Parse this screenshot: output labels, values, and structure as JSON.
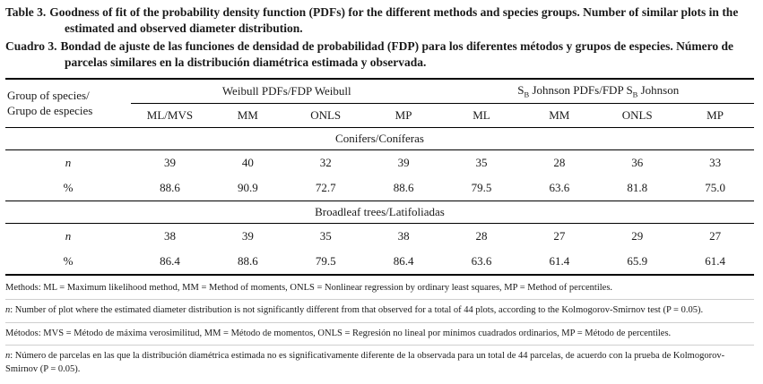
{
  "doc": {
    "title_en": {
      "label": "Table 3.",
      "text": "Goodness of fit of the probability density function (PDFs) for the different methods and species groups. Number of similar plots in the estimated and observed diameter distribution."
    },
    "title_es": {
      "label": "Cuadro 3.",
      "text": "Bondad de ajuste de las funciones de densidad de probabilidad (FDP) para los diferentes métodos y grupos de especies. Número de parcelas similares en la distribución diamétrica estimada y observada."
    }
  },
  "table": {
    "row_header": {
      "line1": "Group of species/",
      "line2": "Grupo de especies"
    },
    "group_weibull": "Weibull PDFs/FDP Weibull",
    "group_johnson": {
      "p0": "S",
      "s0": "B",
      "p1": " Johnson PDFs/FDP S",
      "s1": "B",
      "p2": " Johnson"
    },
    "columns": [
      "ML/MVS",
      "MM",
      "ONLS",
      "MP",
      "ML",
      "MM",
      "ONLS",
      "MP"
    ],
    "sections": [
      {
        "title": "Conifers/Coníferas",
        "rows": [
          {
            "label": "n",
            "values": [
              "39",
              "40",
              "32",
              "39",
              "35",
              "28",
              "36",
              "33"
            ]
          },
          {
            "label": "%",
            "values": [
              "88.6",
              "90.9",
              "72.7",
              "88.6",
              "79.5",
              "63.6",
              "81.8",
              "75.0"
            ]
          }
        ]
      },
      {
        "title": "Broadleaf trees/Latifoliadas",
        "rows": [
          {
            "label": "n",
            "values": [
              "38",
              "39",
              "35",
              "38",
              "28",
              "27",
              "29",
              "27"
            ]
          },
          {
            "label": "%",
            "values": [
              "86.4",
              "88.6",
              "79.5",
              "86.4",
              "63.6",
              "61.4",
              "65.9",
              "61.4"
            ]
          }
        ]
      }
    ]
  },
  "footnotes": [
    {
      "lead": "Methods",
      "body": ": ML = Maximum likelihood method, MM = Method of moments, ONLS = Nonlinear regression by ordinary least squares, MP = Method of percentiles."
    },
    {
      "lead": "n",
      "body": ": Number of plot where the estimated diameter distribution is not significantly different from that observed for a total of 44 plots, according to the Kolmogorov-Smirnov test (P = 0.05)."
    },
    {
      "lead": "Métodos",
      "body": ": MVS = Método de máxima verosimilitud, MM = Método de momentos, ONLS = Regresión no lineal por mínimos cuadrados ordinarios, MP = Método de percentiles."
    },
    {
      "lead": "n",
      "body": ": Número de parcelas en las que la distribución diamétrica estimada no es significativamente diferente de la observada para un total de 44 parcelas, de acuerdo con la prueba de Kolmogorov-Smirnov (P = 0.05)."
    }
  ]
}
